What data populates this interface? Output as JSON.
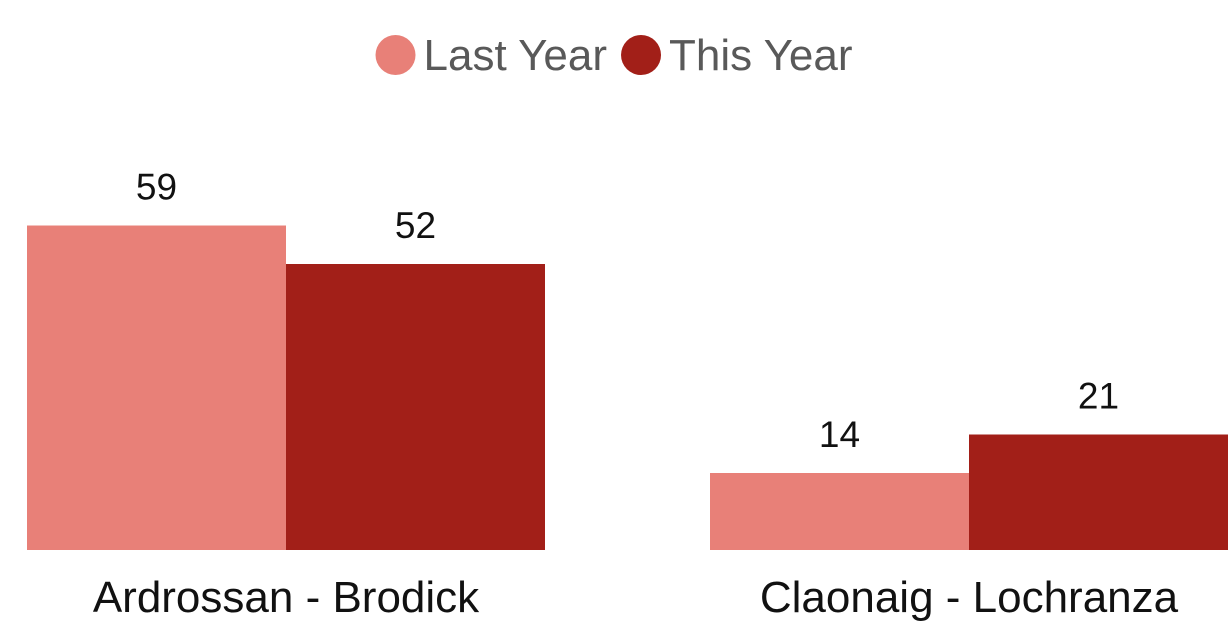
{
  "chart_data": {
    "type": "bar",
    "categories": [
      "Ardrossan - Brodick",
      "Claonaig - Lochranza"
    ],
    "series": [
      {
        "name": "Last Year",
        "values": [
          59,
          14
        ],
        "color": "#e88078"
      },
      {
        "name": "This Year",
        "values": [
          52,
          21
        ],
        "color": "#a21f18"
      }
    ],
    "title": "",
    "xlabel": "",
    "ylabel": "",
    "ylim": [
      0,
      100
    ],
    "legend_position": "top-center",
    "grid": false,
    "data_labels": true,
    "label_color": "#111111",
    "legend_text_color": "#595959"
  }
}
